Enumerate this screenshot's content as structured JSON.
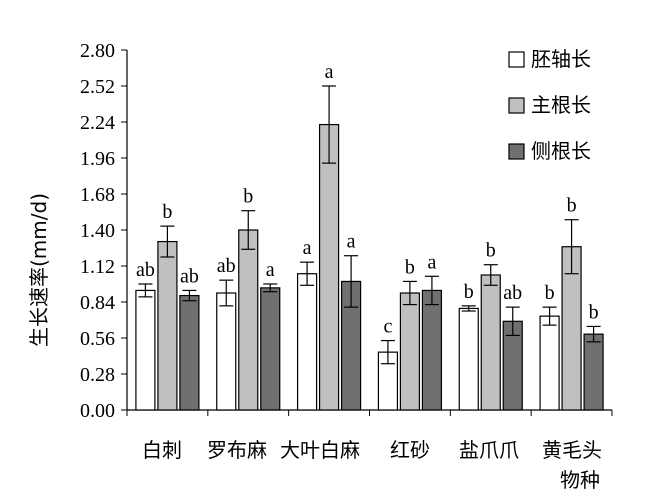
{
  "chart_data": {
    "type": "bar",
    "xlabel": "物种",
    "ylabel": "生长速率(mm/d)",
    "ylim": [
      0,
      2.8
    ],
    "yticks": [
      "0.00",
      "0.28",
      "0.56",
      "0.84",
      "1.12",
      "1.40",
      "1.68",
      "1.96",
      "2.24",
      "2.52",
      "2.80"
    ],
    "grid": false,
    "legend_position": "top-right",
    "categories": [
      "白刺",
      "罗布麻",
      "大叶白麻",
      "红砂",
      "盐爪爪",
      "黄毛头"
    ],
    "series": [
      {
        "name": "胚轴长",
        "color": "#ffffff",
        "values": [
          0.93,
          0.91,
          1.06,
          0.45,
          0.79,
          0.73
        ],
        "errors": [
          0.05,
          0.1,
          0.09,
          0.09,
          0.02,
          0.07
        ],
        "labels": [
          "ab",
          "ab",
          "a",
          "c",
          "b",
          "b"
        ]
      },
      {
        "name": "主根长",
        "color": "#c0c0c0",
        "values": [
          1.31,
          1.4,
          2.22,
          0.91,
          1.05,
          1.27
        ],
        "errors": [
          0.12,
          0.15,
          0.3,
          0.09,
          0.08,
          0.21
        ],
        "labels": [
          "b",
          "b",
          "a",
          "b",
          "b",
          "b"
        ]
      },
      {
        "name": "侧根长",
        "color": "#707070",
        "values": [
          0.89,
          0.95,
          1.0,
          0.93,
          0.69,
          0.59
        ],
        "errors": [
          0.04,
          0.03,
          0.2,
          0.11,
          0.11,
          0.06
        ],
        "labels": [
          "ab",
          "a",
          "a",
          "a",
          "ab",
          "b"
        ]
      }
    ]
  }
}
